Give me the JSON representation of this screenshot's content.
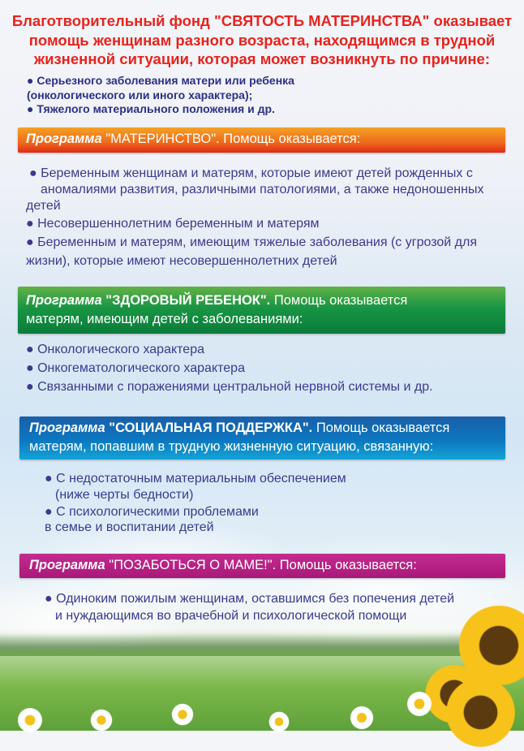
{
  "header": {
    "title_lines": [
      "Благотворительный фонд \"СВЯТОСТЬ МАТЕРИНСТВА\" оказывает",
      "помощь женщинам разного возраста, находящимся в трудной",
      "жизненной ситуации, которая может возникнуть по причине:"
    ],
    "reasons": [
      "● Серьезного заболевания матери или ребенка",
      "(онкологического или иного характера);",
      "●  Тяжелого материального положения и др."
    ]
  },
  "programs": [
    {
      "prefix": "Программа",
      "name": "\"МАТЕРИНСТВО\".",
      "rest": "Помощь оказывается:",
      "rest2": "",
      "color": "#ee6a1c",
      "lines": [
        "● Беременным женщинам и матерям, которые имеют детей рожденных с",
        "аномалиями развития, различными патологиями, а также недоношенных",
        "детей",
        "● Несовершеннолетним беременным и матерям",
        "● Беременным и матерям, имеющим тяжелые заболевания (с угрозой для",
        "жизни), которые имеют несовершеннолетних детей"
      ]
    },
    {
      "prefix": "Программа",
      "name": "\"ЗДОРОВЫЙ РЕБЕНОК\".",
      "rest": "Помощь оказывается",
      "rest2": "матерям, имеющим детей с заболеваниями:",
      "color": "#189543",
      "lines": [
        "● Онкологического характера",
        "● Онкогематологического характера",
        "● Связанными с поражениями центральной нервной системы и др."
      ]
    },
    {
      "prefix": "Программа",
      "name": "\"СОЦИАЛЬНАЯ ПОДДЕРЖКА\".",
      "rest": "Помощь оказывается",
      "rest2": "матерям, попавшим в трудную жизненную ситуацию, связанную:",
      "color": "#0c77bf",
      "lines": [
        "● С недостаточным материальным обеспечением",
        "(ниже черты бедности)",
        "● С психологическими проблемами",
        "в семье и воспитании детей"
      ]
    },
    {
      "prefix": "Программа",
      "name": "\"ПОЗАБОТЬСЯ О МАМЕ!\".",
      "rest": "Помощь оказывается:",
      "rest2": "",
      "color": "#b5197e",
      "lines": [
        "● Одиноким пожилым женщинам, оставшимся без попечения детей",
        "и нуждающимся во врачебной и психологической помощи"
      ]
    }
  ]
}
